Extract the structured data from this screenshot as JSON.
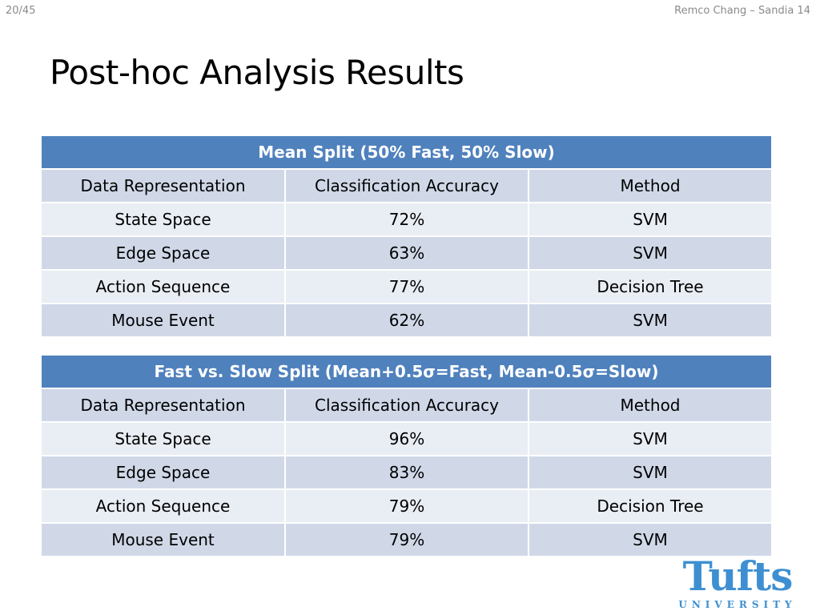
{
  "header": {
    "page_number": "20/45",
    "credit": "Remco Chang – Sandia 14"
  },
  "title": "Post-hoc Analysis Results",
  "tables": [
    {
      "caption": "Mean Split (50% Fast, 50% Slow)",
      "columns": [
        "Data Representation",
        "Classification Accuracy",
        "Method"
      ],
      "rows": [
        [
          "State Space",
          "72%",
          "SVM"
        ],
        [
          "Edge Space",
          "63%",
          "SVM"
        ],
        [
          "Action Sequence",
          "77%",
          "Decision Tree"
        ],
        [
          "Mouse Event",
          "62%",
          "SVM"
        ]
      ]
    },
    {
      "caption": "Fast vs. Slow Split (Mean+0.5σ=Fast, Mean-0.5σ=Slow)",
      "columns": [
        "Data Representation",
        "Classification Accuracy",
        "Method"
      ],
      "rows": [
        [
          "State Space",
          "96%",
          "SVM"
        ],
        [
          "Edge Space",
          "83%",
          "SVM"
        ],
        [
          "Action Sequence",
          "79%",
          "Decision Tree"
        ],
        [
          "Mouse Event",
          "79%",
          "SVM"
        ]
      ]
    }
  ],
  "logo": {
    "wordmark": "Tufts",
    "subtext": "UNIVERSITY"
  },
  "colors": {
    "header_blue": "#4f81bd",
    "row_dark": "#d0d8e8",
    "row_light": "#e9edf4",
    "logo_blue": "#3d8fd1"
  }
}
